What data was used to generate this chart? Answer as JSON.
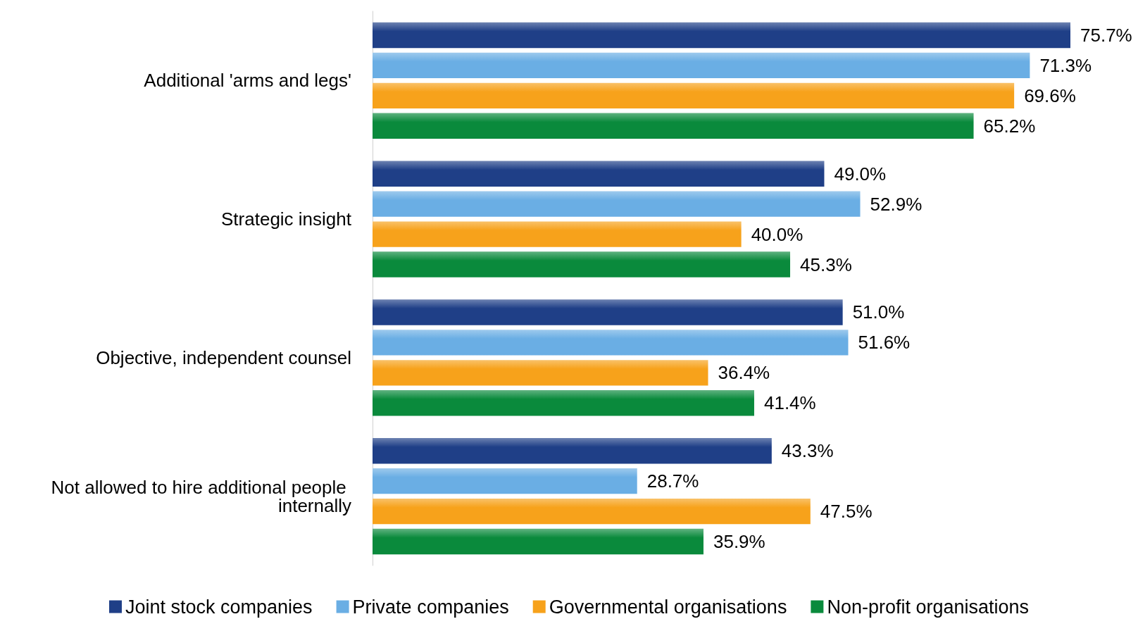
{
  "chart_data": {
    "type": "bar",
    "orientation": "horizontal",
    "categories": [
      "Additional 'arms and legs'",
      "Strategic insight",
      "Objective, independent counsel",
      "Not allowed to hire additional people internally"
    ],
    "series": [
      {
        "name": "Joint stock companies",
        "color": "#1f3f87",
        "values": [
          75.7,
          49.0,
          51.0,
          43.3
        ],
        "value_labels": [
          "75.7%",
          "49.0%",
          "51.0%",
          "43.3%"
        ]
      },
      {
        "name": "Private companies",
        "color": "#6aaee4",
        "values": [
          71.3,
          52.9,
          51.6,
          28.7
        ],
        "value_labels": [
          "71.3%",
          "52.9%",
          "51.6%",
          "28.7%"
        ]
      },
      {
        "name": "Governmental organisations",
        "color": "#f7a21b",
        "values": [
          69.6,
          40.0,
          36.4,
          47.5
        ],
        "value_labels": [
          "69.6%",
          "40.0%",
          "36.4%",
          "47.5%"
        ]
      },
      {
        "name": "Non-profit organisations",
        "color": "#0a8a3c",
        "values": [
          65.2,
          45.3,
          41.4,
          35.9
        ],
        "value_labels": [
          "65.2%",
          "45.3%",
          "41.4%",
          "35.9%"
        ]
      }
    ],
    "grid": false,
    "legend": "bottom"
  }
}
